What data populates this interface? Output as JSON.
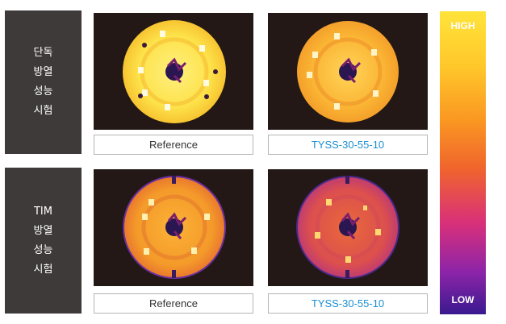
{
  "rows": [
    {
      "label": "단독\n방열\n성능\n시험"
    },
    {
      "label": "TIM\n방열\n성능\n시험"
    }
  ],
  "captions": {
    "r1_left": "Reference",
    "r1_right": "TYSS-30-55-10",
    "r2_left": "Reference",
    "r2_right": "TYSS-30-55-10"
  },
  "scale": {
    "high": "HIGH",
    "low": "LOW"
  },
  "colors": {
    "label_bg": "#3e3a39",
    "accent_text": "#1a8fd1",
    "image_bg": "#231815"
  }
}
